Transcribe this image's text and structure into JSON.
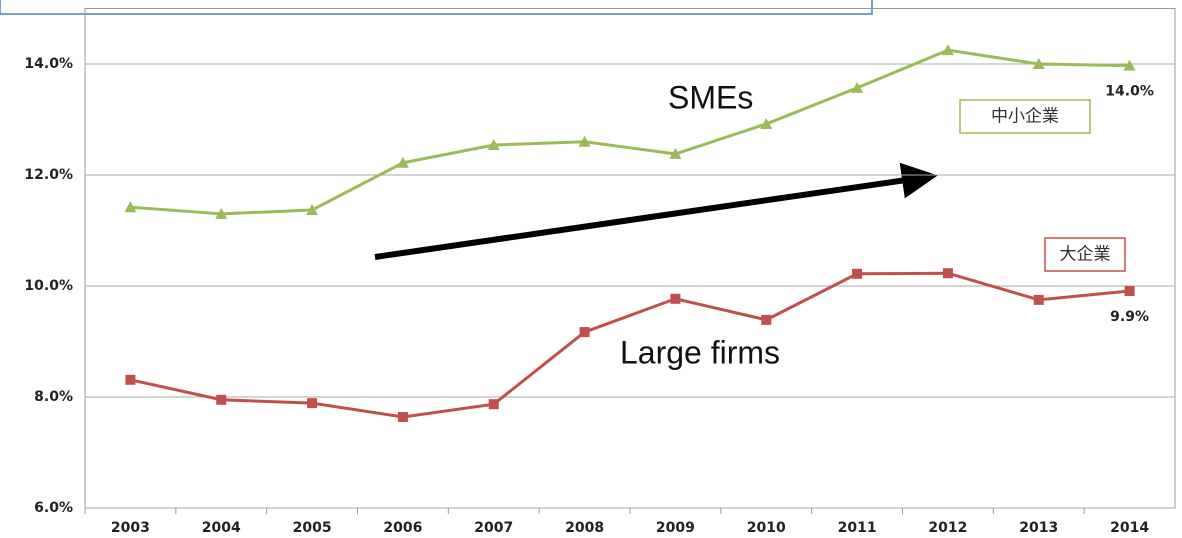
{
  "chart_data": {
    "type": "line",
    "categories": [
      "2003",
      "2004",
      "2005",
      "2006",
      "2007",
      "2008",
      "2009",
      "2010",
      "2011",
      "2012",
      "2013",
      "2014"
    ],
    "series": [
      {
        "name": "中小企業",
        "color": "#9bbb59",
        "marker": "triangle",
        "values": [
          11.42,
          11.3,
          11.37,
          12.22,
          12.54,
          12.6,
          12.38,
          12.92,
          13.57,
          14.25,
          14.0,
          13.97
        ],
        "value_labels": [
          null,
          null,
          null,
          null,
          null,
          null,
          null,
          null,
          null,
          null,
          null,
          "14.0%"
        ]
      },
      {
        "name": "大企業",
        "color": "#c0504d",
        "marker": "square",
        "values": [
          8.31,
          7.95,
          7.89,
          7.64,
          7.87,
          9.17,
          9.77,
          9.39,
          10.22,
          10.23,
          9.75,
          9.91
        ],
        "value_labels": [
          null,
          null,
          null,
          null,
          null,
          null,
          null,
          null,
          null,
          null,
          null,
          "9.9%"
        ]
      }
    ],
    "ylim": [
      6,
      15
    ],
    "yticks": [
      {
        "value": 6,
        "label": "6.0%"
      },
      {
        "value": 8,
        "label": "8.0%"
      },
      {
        "value": 10,
        "label": "10.0%"
      },
      {
        "value": 12,
        "label": "12.0%"
      },
      {
        "value": 14,
        "label": "14.0%"
      }
    ],
    "grid": true,
    "annotations": [
      "SMEs",
      "Large firms"
    ]
  }
}
